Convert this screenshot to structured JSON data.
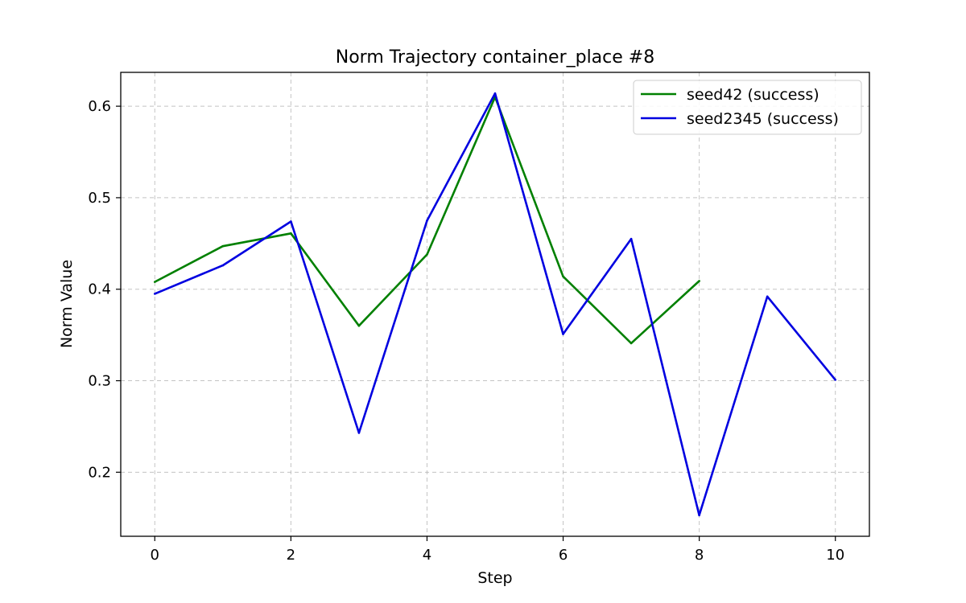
{
  "chart_data": {
    "type": "line",
    "title": "Norm Trajectory container_place #8",
    "xlabel": "Step",
    "ylabel": "Norm Value",
    "xlim": [
      -0.5,
      10.5
    ],
    "ylim": [
      0.13,
      0.637
    ],
    "xticks": [
      0,
      2,
      4,
      6,
      8,
      10
    ],
    "yticks": [
      0.2,
      0.3,
      0.4,
      0.5,
      0.6
    ],
    "xtick_labels": [
      "0",
      "2",
      "4",
      "6",
      "8",
      "10"
    ],
    "ytick_labels": [
      "0.2",
      "0.3",
      "0.4",
      "0.5",
      "0.6"
    ],
    "grid": true,
    "legend_position": "top-right",
    "series": [
      {
        "name": "seed42 (success)",
        "color": "#008000",
        "x": [
          0,
          1,
          2,
          3,
          4,
          5,
          6,
          7,
          8
        ],
        "y": [
          0.408,
          0.447,
          0.461,
          0.36,
          0.438,
          0.61,
          0.414,
          0.341,
          0.409
        ]
      },
      {
        "name": "seed2345 (success)",
        "color": "#0000e0",
        "x": [
          0,
          1,
          2,
          3,
          4,
          5,
          6,
          7,
          8,
          9,
          10
        ],
        "y": [
          0.395,
          0.426,
          0.474,
          0.243,
          0.475,
          0.614,
          0.351,
          0.455,
          0.153,
          0.392,
          0.301
        ]
      }
    ]
  }
}
